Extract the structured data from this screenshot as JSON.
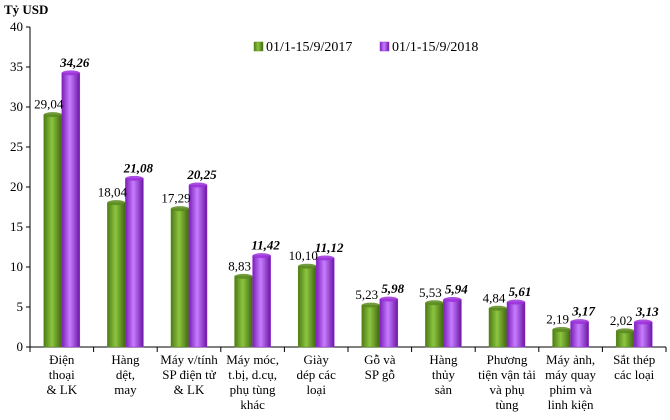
{
  "chart_data": {
    "type": "bar",
    "ylabel": "Tỷ USD",
    "ylim": [
      0,
      40
    ],
    "yticks": [
      0,
      5,
      10,
      15,
      20,
      25,
      30,
      35,
      40
    ],
    "grid": false,
    "legend_position": "top-right",
    "categories": [
      [
        "Điện",
        "thoại",
        "& LK"
      ],
      [
        "Hàng",
        "dệt,",
        "may"
      ],
      [
        "Máy v/tính",
        "SP điện tử",
        "& LK"
      ],
      [
        "Máy móc,",
        "t.bị, d.cụ,",
        "phụ tùng",
        "khác"
      ],
      [
        "Giày",
        "dép các",
        "loại"
      ],
      [
        "Gỗ và",
        "SP gỗ"
      ],
      [
        "Hàng",
        "thủy",
        "sản"
      ],
      [
        "Phương",
        "tiện vận tải",
        "và phụ",
        "tùng"
      ],
      [
        "Máy ảnh,",
        "máy quay",
        "phim và",
        "linh kiện"
      ],
      [
        "Sắt thép",
        "các loại"
      ]
    ],
    "series": [
      {
        "name": "01/1-15/9/2017",
        "color": "#5a8a1e",
        "values": [
          29.04,
          18.04,
          17.29,
          8.83,
          10.1,
          5.23,
          5.53,
          4.84,
          2.19,
          2.02
        ],
        "labels": [
          "29,04",
          "18,04",
          "17,29",
          "8,83",
          "10,10",
          "5,23",
          "5,53",
          "4,84",
          "2,19",
          "2,02"
        ]
      },
      {
        "name": "01/1-15/9/2018",
        "color": "#9b30d9",
        "values": [
          34.26,
          21.08,
          20.25,
          11.42,
          11.12,
          5.98,
          5.94,
          5.61,
          3.17,
          3.13
        ],
        "labels": [
          "34,26",
          "21,08",
          "20,25",
          "11,42",
          "11,12",
          "5,98",
          "5,94",
          "5,61",
          "3,17",
          "3,13"
        ]
      }
    ]
  }
}
